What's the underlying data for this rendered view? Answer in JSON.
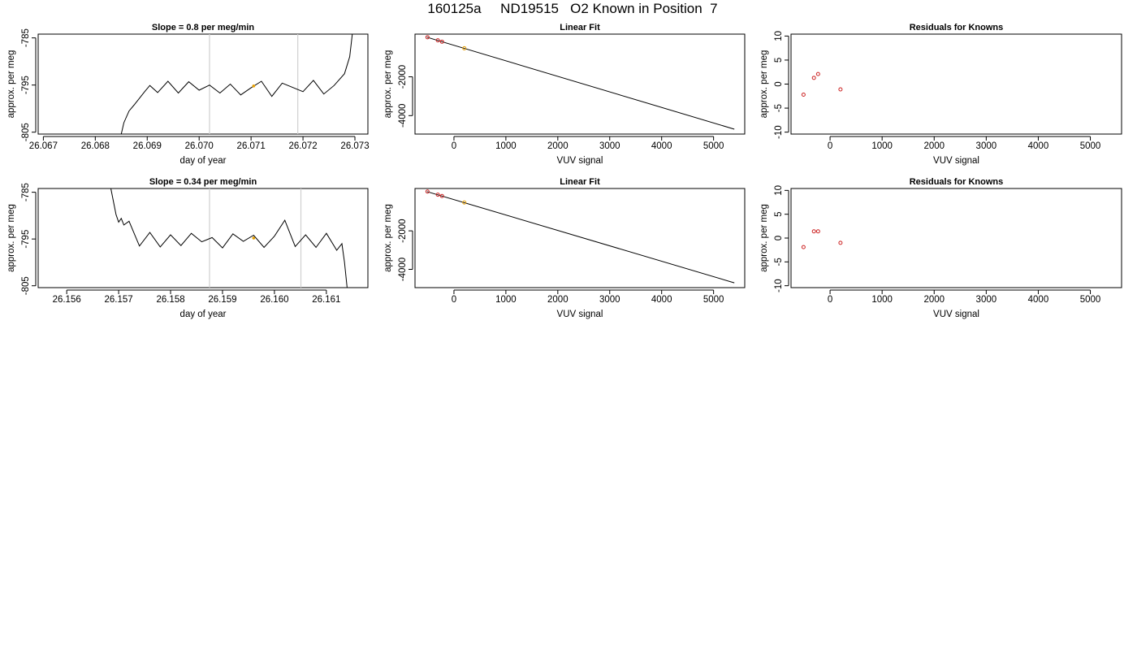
{
  "figure": {
    "title": "160125a     ND19515   O2 Known in Position  7"
  },
  "chart_data": [
    {
      "type": "line",
      "title": "Slope =  0.8  per meg/min",
      "xlabel": "day of year",
      "ylabel": "approx. per meg",
      "xlim": [
        26.0669,
        26.07325
      ],
      "ylim": [
        -805.4,
        -784.2
      ],
      "xticks": [
        "26.067",
        "26.068",
        "26.069",
        "26.070",
        "26.071",
        "26.072",
        "26.073"
      ],
      "yticks": [
        "-785",
        "-795",
        "-805"
      ],
      "vlines": [
        26.0702,
        26.0719
      ],
      "marker": {
        "x": 26.07105,
        "y": -795.2,
        "color": "#E69F00"
      },
      "series": [
        {
          "x": [
            26.0685,
            26.06855,
            26.06865,
            26.06875,
            26.06885,
            26.06895,
            26.06905,
            26.0692,
            26.0694,
            26.0696,
            26.0698,
            26.07,
            26.0702,
            26.0704,
            26.0706,
            26.0708,
            26.071,
            26.0712,
            26.0714,
            26.0716,
            26.0718,
            26.072,
            26.0722,
            26.0724,
            26.0726,
            26.0728,
            26.0729,
            26.07295
          ],
          "y": [
            -805.4,
            -803.0,
            -800.5,
            -799.2,
            -797.8,
            -796.4,
            -795.1,
            -796.6,
            -794.2,
            -796.7,
            -794.3,
            -796.1,
            -795.0,
            -796.7,
            -794.8,
            -797.1,
            -795.6,
            -794.2,
            -797.4,
            -794.6,
            -795.5,
            -796.4,
            -794.0,
            -796.9,
            -795.1,
            -792.6,
            -789.0,
            -784.2
          ]
        }
      ]
    },
    {
      "type": "line",
      "title": "Linear Fit",
      "xlabel": "VUV signal",
      "ylabel": "approx. per meg",
      "xlim": [
        -750,
        5600
      ],
      "ylim": [
        -4950,
        200
      ],
      "xticks": [
        0,
        1000,
        2000,
        3000,
        4000,
        5000
      ],
      "yticks": [
        -2000,
        -4000
      ],
      "series": [
        {
          "name": "fit",
          "x": [
            -520,
            5400
          ],
          "y": [
            40,
            -4700
          ]
        }
      ],
      "points": [
        {
          "x": -510,
          "y": 40,
          "color": "#CC2222"
        },
        {
          "x": -310,
          "y": -120,
          "color": "#CC2222"
        },
        {
          "x": -230,
          "y": -190,
          "color": "#CC2222"
        },
        {
          "x": 200,
          "y": -530,
          "color": "#E69F00"
        }
      ]
    },
    {
      "type": "scatter",
      "title": "Residuals for Knowns",
      "xlabel": "VUV signal",
      "ylabel": "approx. per meg",
      "xlim": [
        -750,
        5600
      ],
      "ylim": [
        -10.4,
        10.4
      ],
      "xticks": [
        0,
        1000,
        2000,
        3000,
        4000,
        5000
      ],
      "yticks": [
        10,
        5,
        0,
        -5,
        -10
      ],
      "points": [
        {
          "x": -510,
          "y": -2.2,
          "color": "#CC2222"
        },
        {
          "x": -310,
          "y": 1.3,
          "color": "#CC2222"
        },
        {
          "x": -230,
          "y": 2.1,
          "color": "#CC2222"
        },
        {
          "x": 200,
          "y": -1.1,
          "color": "#CC2222"
        }
      ]
    },
    {
      "type": "line",
      "title": "Slope =  0.34  per meg/min",
      "xlabel": "day of year",
      "ylabel": "approx. per meg",
      "xlim": [
        26.15545,
        26.1618
      ],
      "ylim": [
        -805.4,
        -784.2
      ],
      "xticks": [
        "26.156",
        "26.157",
        "26.158",
        "26.159",
        "26.160",
        "26.161"
      ],
      "yticks": [
        "-785",
        "-795",
        "-805"
      ],
      "vlines": [
        26.15875,
        26.16051
      ],
      "marker": {
        "x": 26.1596,
        "y": -794.8,
        "color": "#E69F00"
      },
      "series": [
        {
          "x": [
            26.15685,
            26.1569,
            26.15695,
            26.157,
            26.15705,
            26.1571,
            26.1572,
            26.1574,
            26.1576,
            26.1578,
            26.158,
            26.1582,
            26.1584,
            26.1586,
            26.1588,
            26.159,
            26.1592,
            26.1594,
            26.1596,
            26.1598,
            26.16,
            26.1602,
            26.1604,
            26.1606,
            26.1608,
            26.161,
            26.1612,
            26.1613,
            26.16135,
            26.1614
          ],
          "y": [
            -784.2,
            -787.0,
            -789.8,
            -791.4,
            -790.6,
            -792.0,
            -791.2,
            -796.5,
            -793.6,
            -796.7,
            -794.1,
            -796.4,
            -793.8,
            -795.6,
            -794.7,
            -796.9,
            -793.9,
            -795.5,
            -794.2,
            -796.8,
            -794.4,
            -791.0,
            -796.6,
            -794.1,
            -796.8,
            -793.8,
            -797.4,
            -796.0,
            -800.0,
            -805.4
          ]
        }
      ]
    },
    {
      "type": "line",
      "title": "Linear Fit",
      "xlabel": "VUV signal",
      "ylabel": "approx. per meg",
      "xlim": [
        -750,
        5600
      ],
      "ylim": [
        -4950,
        200
      ],
      "xticks": [
        0,
        1000,
        2000,
        3000,
        4000,
        5000
      ],
      "yticks": [
        -2000,
        -4000
      ],
      "series": [
        {
          "name": "fit",
          "x": [
            -520,
            5400
          ],
          "y": [
            40,
            -4700
          ]
        }
      ],
      "points": [
        {
          "x": -510,
          "y": 40,
          "color": "#CC2222"
        },
        {
          "x": -310,
          "y": -120,
          "color": "#CC2222"
        },
        {
          "x": -230,
          "y": -190,
          "color": "#CC2222"
        },
        {
          "x": 200,
          "y": -530,
          "color": "#E69F00"
        }
      ]
    },
    {
      "type": "scatter",
      "title": "Residuals for Knowns",
      "xlabel": "VUV signal",
      "ylabel": "approx. per meg",
      "xlim": [
        -750,
        5600
      ],
      "ylim": [
        -10.4,
        10.4
      ],
      "xticks": [
        0,
        1000,
        2000,
        3000,
        4000,
        5000
      ],
      "yticks": [
        10,
        5,
        0,
        -5,
        -10
      ],
      "points": [
        {
          "x": -510,
          "y": -1.9,
          "color": "#CC2222"
        },
        {
          "x": -310,
          "y": 1.4,
          "color": "#CC2222"
        },
        {
          "x": -230,
          "y": 1.4,
          "color": "#CC2222"
        },
        {
          "x": 200,
          "y": -1.0,
          "color": "#CC2222"
        }
      ]
    }
  ]
}
